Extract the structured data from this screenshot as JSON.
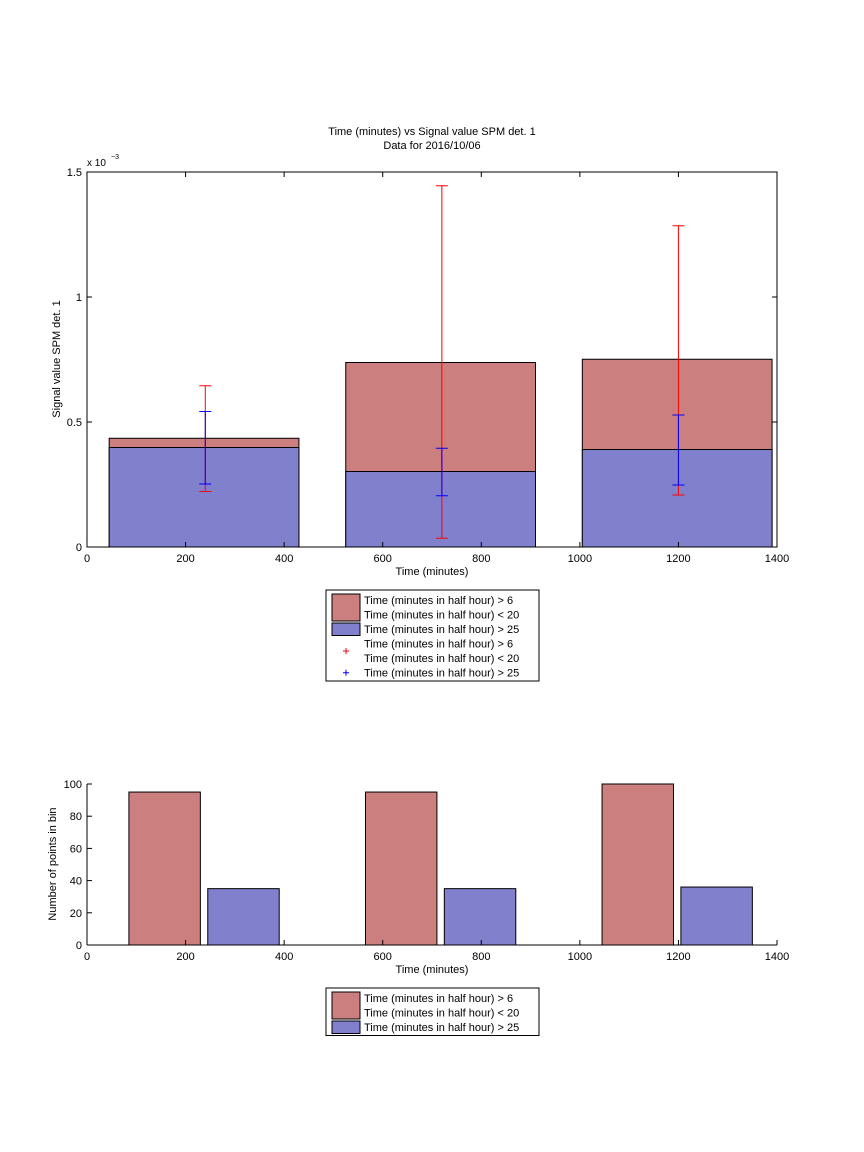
{
  "chart_data": [
    {
      "type": "bar",
      "title": "Time (minutes) vs Signal value SPM det. 1",
      "subtitle": "Data for 2016/10/06",
      "xlabel": "Time (minutes)",
      "ylabel": "Signal value SPM det. 1",
      "y_exponent_label": "x 10",
      "y_exponent": "−3",
      "xlim": [
        0,
        1400
      ],
      "ylim": [
        0,
        1.5
      ],
      "x_ticks": [
        0,
        200,
        400,
        600,
        800,
        1000,
        1200,
        1400
      ],
      "x_tick_labels": [
        "0",
        "200",
        "400",
        "600",
        "800",
        "1000",
        "1200",
        "1400"
      ],
      "y_ticks": [
        0,
        0.5,
        1,
        1.5
      ],
      "y_tick_labels": [
        "0",
        "0.5",
        "1",
        "1.5"
      ],
      "grid": false,
      "legend_position": "below",
      "bars": [
        {
          "x_start": 45,
          "x_end": 430,
          "red_value": 0.435,
          "blue_value": 0.398
        },
        {
          "x_start": 525,
          "x_end": 910,
          "red_value": 0.738,
          "blue_value": 0.302
        },
        {
          "x_start": 1005,
          "x_end": 1390,
          "red_value": 0.751,
          "blue_value": 0.39
        }
      ],
      "errorbars": [
        {
          "series": "red",
          "x": 240,
          "low": 0.222,
          "high": 0.645
        },
        {
          "series": "blue",
          "x": 240,
          "low": 0.252,
          "high": 0.542
        },
        {
          "series": "red",
          "x": 720,
          "low": 0.035,
          "high": 1.445
        },
        {
          "series": "blue",
          "x": 720,
          "low": 0.205,
          "high": 0.395
        },
        {
          "series": "red",
          "x": 1200,
          "low": 0.208,
          "high": 1.285
        },
        {
          "series": "blue",
          "x": 1200,
          "low": 0.248,
          "high": 0.528
        }
      ],
      "legend": [
        {
          "kind": "patch",
          "color": "#cc7f7f",
          "lines": [
            "Time (minutes in half hour) > 6",
            "Time (minutes in half hour) < 20"
          ]
        },
        {
          "kind": "patch",
          "color": "#8080cc",
          "lines": [
            "Time (minutes in half hour) > 25"
          ]
        },
        {
          "kind": "marker",
          "color": "#ff0000",
          "lines": [
            "Time (minutes in half hour) > 6",
            "Time (minutes in half hour) < 20"
          ]
        },
        {
          "kind": "marker",
          "color": "#0000ff",
          "lines": [
            "Time (minutes in half hour) > 25"
          ]
        }
      ]
    },
    {
      "type": "bar",
      "title": "",
      "xlabel": "Time (minutes)",
      "ylabel": "Number of points in bin",
      "xlim": [
        0,
        1400
      ],
      "ylim": [
        0,
        100
      ],
      "x_ticks": [
        0,
        200,
        400,
        600,
        800,
        1000,
        1200,
        1400
      ],
      "x_tick_labels": [
        "0",
        "200",
        "400",
        "600",
        "800",
        "1000",
        "1200",
        "1400"
      ],
      "y_ticks": [
        0,
        20,
        40,
        60,
        80,
        100
      ],
      "y_tick_labels": [
        "0",
        "20",
        "40",
        "60",
        "80",
        "100"
      ],
      "grid": false,
      "legend_position": "below",
      "bars": [
        {
          "series": "red",
          "x_start": 85,
          "x_end": 230,
          "value": 95
        },
        {
          "series": "blue",
          "x_start": 245,
          "x_end": 390,
          "value": 35
        },
        {
          "series": "red",
          "x_start": 565,
          "x_end": 710,
          "value": 95
        },
        {
          "series": "blue",
          "x_start": 725,
          "x_end": 870,
          "value": 35
        },
        {
          "series": "red",
          "x_start": 1045,
          "x_end": 1190,
          "value": 100
        },
        {
          "series": "blue",
          "x_start": 1205,
          "x_end": 1350,
          "value": 36
        }
      ],
      "legend": [
        {
          "kind": "patch",
          "color": "#cc7f7f",
          "lines": [
            "Time (minutes in half hour) > 6",
            "Time (minutes in half hour) < 20"
          ]
        },
        {
          "kind": "patch",
          "color": "#8080cc",
          "lines": [
            "Time (minutes in half hour) > 25"
          ]
        }
      ]
    }
  ],
  "colors": {
    "red_bar": "#cc7f7f",
    "blue_bar": "#8080cc",
    "red_error": "#ff0000",
    "blue_error": "#0000ff"
  }
}
